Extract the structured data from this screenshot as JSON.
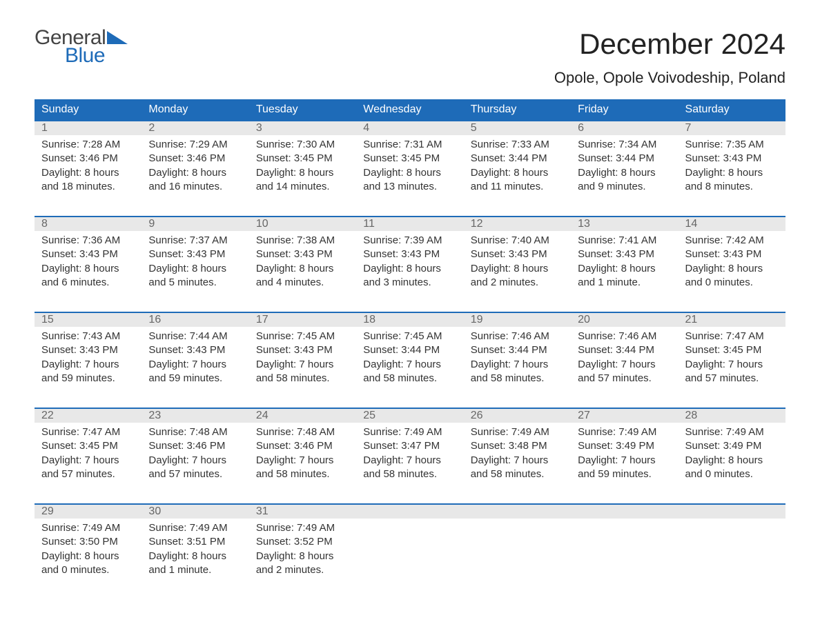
{
  "logo": {
    "word1": "General",
    "word2": "Blue",
    "triangle_color": "#1e6bb8",
    "text_gray": "#444444"
  },
  "title": "December 2024",
  "subtitle": "Opole, Opole Voivodeship, Poland",
  "colors": {
    "header_bg": "#1e6bb8",
    "header_text": "#ffffff",
    "daynum_bg": "#e8e8e8",
    "daynum_text": "#666666",
    "body_text": "#333333",
    "week_border": "#1e6bb8",
    "background": "#ffffff"
  },
  "fonts": {
    "title_pt": 42,
    "subtitle_pt": 22,
    "dow_pt": 16,
    "daynum_pt": 16,
    "body_pt": 15
  },
  "calendar": {
    "type": "table",
    "columns": [
      "Sunday",
      "Monday",
      "Tuesday",
      "Wednesday",
      "Thursday",
      "Friday",
      "Saturday"
    ],
    "weeks": [
      [
        {
          "n": "1",
          "sr": "Sunrise: 7:28 AM",
          "ss": "Sunset: 3:46 PM",
          "d1": "Daylight: 8 hours",
          "d2": "and 18 minutes."
        },
        {
          "n": "2",
          "sr": "Sunrise: 7:29 AM",
          "ss": "Sunset: 3:46 PM",
          "d1": "Daylight: 8 hours",
          "d2": "and 16 minutes."
        },
        {
          "n": "3",
          "sr": "Sunrise: 7:30 AM",
          "ss": "Sunset: 3:45 PM",
          "d1": "Daylight: 8 hours",
          "d2": "and 14 minutes."
        },
        {
          "n": "4",
          "sr": "Sunrise: 7:31 AM",
          "ss": "Sunset: 3:45 PM",
          "d1": "Daylight: 8 hours",
          "d2": "and 13 minutes."
        },
        {
          "n": "5",
          "sr": "Sunrise: 7:33 AM",
          "ss": "Sunset: 3:44 PM",
          "d1": "Daylight: 8 hours",
          "d2": "and 11 minutes."
        },
        {
          "n": "6",
          "sr": "Sunrise: 7:34 AM",
          "ss": "Sunset: 3:44 PM",
          "d1": "Daylight: 8 hours",
          "d2": "and 9 minutes."
        },
        {
          "n": "7",
          "sr": "Sunrise: 7:35 AM",
          "ss": "Sunset: 3:43 PM",
          "d1": "Daylight: 8 hours",
          "d2": "and 8 minutes."
        }
      ],
      [
        {
          "n": "8",
          "sr": "Sunrise: 7:36 AM",
          "ss": "Sunset: 3:43 PM",
          "d1": "Daylight: 8 hours",
          "d2": "and 6 minutes."
        },
        {
          "n": "9",
          "sr": "Sunrise: 7:37 AM",
          "ss": "Sunset: 3:43 PM",
          "d1": "Daylight: 8 hours",
          "d2": "and 5 minutes."
        },
        {
          "n": "10",
          "sr": "Sunrise: 7:38 AM",
          "ss": "Sunset: 3:43 PM",
          "d1": "Daylight: 8 hours",
          "d2": "and 4 minutes."
        },
        {
          "n": "11",
          "sr": "Sunrise: 7:39 AM",
          "ss": "Sunset: 3:43 PM",
          "d1": "Daylight: 8 hours",
          "d2": "and 3 minutes."
        },
        {
          "n": "12",
          "sr": "Sunrise: 7:40 AM",
          "ss": "Sunset: 3:43 PM",
          "d1": "Daylight: 8 hours",
          "d2": "and 2 minutes."
        },
        {
          "n": "13",
          "sr": "Sunrise: 7:41 AM",
          "ss": "Sunset: 3:43 PM",
          "d1": "Daylight: 8 hours",
          "d2": "and 1 minute."
        },
        {
          "n": "14",
          "sr": "Sunrise: 7:42 AM",
          "ss": "Sunset: 3:43 PM",
          "d1": "Daylight: 8 hours",
          "d2": "and 0 minutes."
        }
      ],
      [
        {
          "n": "15",
          "sr": "Sunrise: 7:43 AM",
          "ss": "Sunset: 3:43 PM",
          "d1": "Daylight: 7 hours",
          "d2": "and 59 minutes."
        },
        {
          "n": "16",
          "sr": "Sunrise: 7:44 AM",
          "ss": "Sunset: 3:43 PM",
          "d1": "Daylight: 7 hours",
          "d2": "and 59 minutes."
        },
        {
          "n": "17",
          "sr": "Sunrise: 7:45 AM",
          "ss": "Sunset: 3:43 PM",
          "d1": "Daylight: 7 hours",
          "d2": "and 58 minutes."
        },
        {
          "n": "18",
          "sr": "Sunrise: 7:45 AM",
          "ss": "Sunset: 3:44 PM",
          "d1": "Daylight: 7 hours",
          "d2": "and 58 minutes."
        },
        {
          "n": "19",
          "sr": "Sunrise: 7:46 AM",
          "ss": "Sunset: 3:44 PM",
          "d1": "Daylight: 7 hours",
          "d2": "and 58 minutes."
        },
        {
          "n": "20",
          "sr": "Sunrise: 7:46 AM",
          "ss": "Sunset: 3:44 PM",
          "d1": "Daylight: 7 hours",
          "d2": "and 57 minutes."
        },
        {
          "n": "21",
          "sr": "Sunrise: 7:47 AM",
          "ss": "Sunset: 3:45 PM",
          "d1": "Daylight: 7 hours",
          "d2": "and 57 minutes."
        }
      ],
      [
        {
          "n": "22",
          "sr": "Sunrise: 7:47 AM",
          "ss": "Sunset: 3:45 PM",
          "d1": "Daylight: 7 hours",
          "d2": "and 57 minutes."
        },
        {
          "n": "23",
          "sr": "Sunrise: 7:48 AM",
          "ss": "Sunset: 3:46 PM",
          "d1": "Daylight: 7 hours",
          "d2": "and 57 minutes."
        },
        {
          "n": "24",
          "sr": "Sunrise: 7:48 AM",
          "ss": "Sunset: 3:46 PM",
          "d1": "Daylight: 7 hours",
          "d2": "and 58 minutes."
        },
        {
          "n": "25",
          "sr": "Sunrise: 7:49 AM",
          "ss": "Sunset: 3:47 PM",
          "d1": "Daylight: 7 hours",
          "d2": "and 58 minutes."
        },
        {
          "n": "26",
          "sr": "Sunrise: 7:49 AM",
          "ss": "Sunset: 3:48 PM",
          "d1": "Daylight: 7 hours",
          "d2": "and 58 minutes."
        },
        {
          "n": "27",
          "sr": "Sunrise: 7:49 AM",
          "ss": "Sunset: 3:49 PM",
          "d1": "Daylight: 7 hours",
          "d2": "and 59 minutes."
        },
        {
          "n": "28",
          "sr": "Sunrise: 7:49 AM",
          "ss": "Sunset: 3:49 PM",
          "d1": "Daylight: 8 hours",
          "d2": "and 0 minutes."
        }
      ],
      [
        {
          "n": "29",
          "sr": "Sunrise: 7:49 AM",
          "ss": "Sunset: 3:50 PM",
          "d1": "Daylight: 8 hours",
          "d2": "and 0 minutes."
        },
        {
          "n": "30",
          "sr": "Sunrise: 7:49 AM",
          "ss": "Sunset: 3:51 PM",
          "d1": "Daylight: 8 hours",
          "d2": "and 1 minute."
        },
        {
          "n": "31",
          "sr": "Sunrise: 7:49 AM",
          "ss": "Sunset: 3:52 PM",
          "d1": "Daylight: 8 hours",
          "d2": "and 2 minutes."
        },
        null,
        null,
        null,
        null
      ]
    ]
  }
}
